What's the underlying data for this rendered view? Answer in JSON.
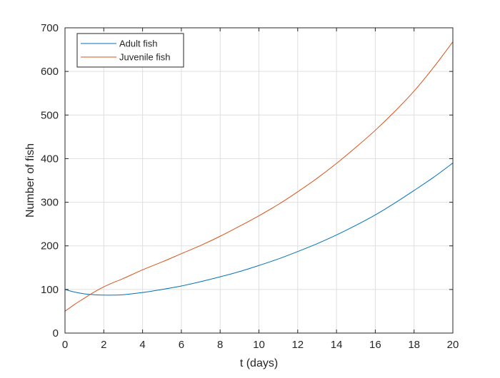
{
  "chart_data": {
    "type": "line",
    "title": "",
    "xlabel": "t (days)",
    "ylabel": "Number of fish",
    "xlim": [
      0,
      20
    ],
    "ylim": [
      0,
      700
    ],
    "xticks": [
      0,
      2,
      4,
      6,
      8,
      10,
      12,
      14,
      16,
      18,
      20
    ],
    "yticks": [
      0,
      100,
      200,
      300,
      400,
      500,
      600,
      700
    ],
    "grid": true,
    "legend_position": "top-left",
    "series": [
      {
        "name": "Adult fish",
        "color": "#0072BD",
        "x": [
          0,
          0.5,
          1,
          1.5,
          2,
          2.5,
          3,
          4,
          5,
          6,
          7,
          8,
          9,
          10,
          11,
          12,
          13,
          14,
          15,
          16,
          17,
          18,
          19,
          20
        ],
        "y": [
          100,
          94,
          90,
          88,
          87,
          87,
          88,
          93,
          100,
          108,
          118,
          129,
          141,
          155,
          170,
          187,
          205,
          225,
          247,
          271,
          298,
          327,
          357,
          390
        ]
      },
      {
        "name": "Juvenile fish",
        "color": "#D95319",
        "x": [
          0,
          0.5,
          1,
          1.5,
          2,
          2.5,
          3,
          4,
          5,
          6,
          7,
          8,
          9,
          10,
          11,
          12,
          13,
          14,
          15,
          16,
          17,
          18,
          19,
          20
        ],
        "y": [
          50,
          66,
          80,
          94,
          106,
          116,
          125,
          145,
          163,
          182,
          201,
          222,
          245,
          269,
          295,
          324,
          355,
          389,
          426,
          465,
          508,
          555,
          609,
          668
        ]
      }
    ]
  }
}
